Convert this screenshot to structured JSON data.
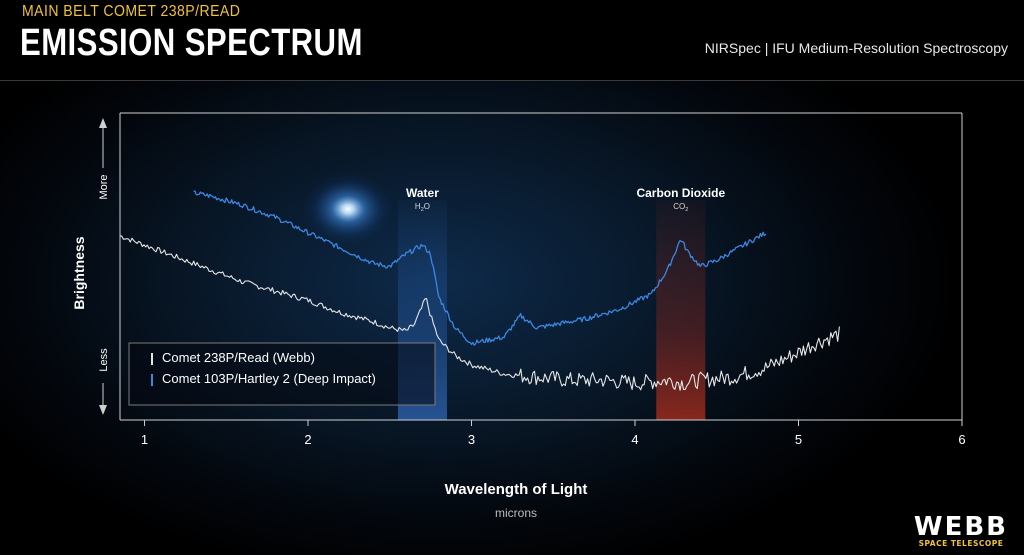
{
  "header": {
    "kicker": "MAIN BELT COMET 238P/READ",
    "title": "EMISSION SPECTRUM",
    "instrument": "NIRSpec | IFU Medium-Resolution Spectroscopy"
  },
  "logo": {
    "main": "WEBB",
    "sub": "SPACE TELESCOPE"
  },
  "colors": {
    "webb_line": "#e6e6e6",
    "hartley_line": "#3d86e0",
    "water_band": "#2f6fc9",
    "co2_band": "#9a2a1e",
    "accent": "#f0c23a"
  },
  "chart_data": {
    "type": "line",
    "xlabel": "Wavelength of Light",
    "xunit": "microns",
    "ylabel": "Brightness",
    "y_top_label": "More",
    "y_bottom_label": "Less",
    "xlim": [
      0.85,
      6
    ],
    "ylim": [
      0,
      100
    ],
    "xticks": [
      1,
      2,
      3,
      4,
      5,
      6
    ],
    "grid": false,
    "legend_position": "bottom-left",
    "bands": [
      {
        "label": "Water",
        "formula": "H",
        "sub": "2",
        "formula_tail": "O",
        "x0": 2.55,
        "x1": 2.85,
        "color": "#2f6fc9"
      },
      {
        "label": "Carbon Dioxide",
        "formula": "CO",
        "sub": "2",
        "formula_tail": "",
        "x0": 4.13,
        "x1": 4.43,
        "color": "#9a2a1e"
      }
    ],
    "series": [
      {
        "name": "Comet 238P/Read (Webb)",
        "color": "#e6e6e6",
        "noise": true,
        "x": [
          0.85,
          1.0,
          1.2,
          1.4,
          1.6,
          1.8,
          2.0,
          2.2,
          2.4,
          2.5,
          2.6,
          2.65,
          2.7,
          2.72,
          2.75,
          2.8,
          2.9,
          3.0,
          3.2,
          3.4,
          3.6,
          3.8,
          4.0,
          4.2,
          4.3,
          4.4,
          4.6,
          4.8,
          5.0,
          5.1,
          5.25
        ],
        "y": [
          60,
          57,
          53,
          49,
          45,
          42,
          39,
          35,
          32,
          30,
          29,
          31,
          37,
          40,
          34,
          26,
          21,
          18,
          15,
          14,
          13,
          13,
          12,
          13,
          12,
          13,
          14,
          17,
          22,
          25,
          28
        ]
      },
      {
        "name": "Comet 103P/Hartley 2 (Deep Impact)",
        "color": "#3d86e0",
        "noise": false,
        "x": [
          1.3,
          1.4,
          1.6,
          1.8,
          2.0,
          2.2,
          2.4,
          2.5,
          2.6,
          2.7,
          2.75,
          2.8,
          2.9,
          3.0,
          3.2,
          3.3,
          3.4,
          3.5,
          3.7,
          3.9,
          4.1,
          4.2,
          4.28,
          4.32,
          4.4,
          4.5,
          4.6,
          4.8
        ],
        "y": [
          74,
          73,
          70,
          66,
          61,
          56,
          51,
          50,
          54,
          57,
          54,
          40,
          30,
          25,
          27,
          34,
          30,
          31,
          33,
          36,
          41,
          49,
          59,
          55,
          50,
          52,
          55,
          61
        ]
      }
    ]
  }
}
